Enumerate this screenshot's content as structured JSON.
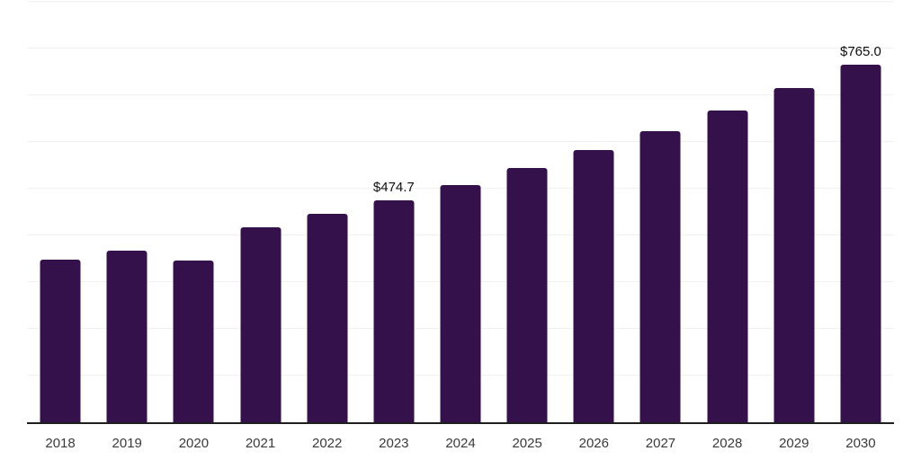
{
  "chart_data": {
    "type": "bar",
    "title": "",
    "xlabel": "",
    "ylabel": "",
    "categories": [
      "2018",
      "2019",
      "2020",
      "2021",
      "2022",
      "2023",
      "2024",
      "2025",
      "2026",
      "2027",
      "2028",
      "2029",
      "2030"
    ],
    "values": [
      347.8,
      367.0,
      345.8,
      417.5,
      446.3,
      474.7,
      508.2,
      544.1,
      582.5,
      623.6,
      667.7,
      714.8,
      765.0
    ],
    "data_labels": [
      {
        "category": "2023",
        "text": "$474.7"
      },
      {
        "category": "2030",
        "text": "$765.0"
      }
    ],
    "ylim": [
      0,
      900
    ],
    "gridline_step": 100,
    "grid": true,
    "legend": false,
    "y_axis_tick_labels_visible": false,
    "colors": {
      "bar": "#35114C",
      "axis_line": "#1f1f1f",
      "gridline": "#f1f1f2",
      "tick_label": "#3a3a3a",
      "data_label": "#0f0f0f",
      "background": "#ffffff"
    }
  }
}
